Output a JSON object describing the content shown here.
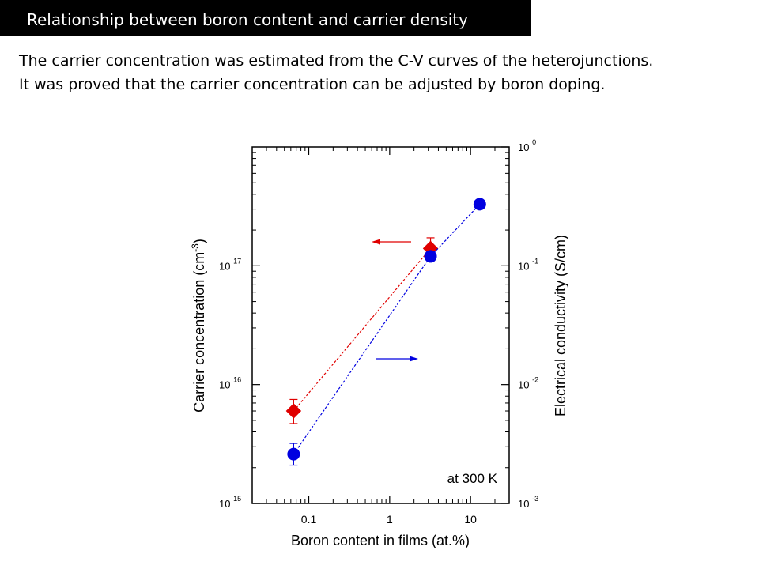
{
  "slide": {
    "title": "Relationship between boron content and carrier density",
    "text_line_1": "The carrier concentration was estimated from the C-V curves of the heterojunctions.",
    "text_line_2": "It was proved that the carrier concentration can be adjusted by boron doping."
  },
  "chart_data": {
    "type": "scatter",
    "x_scale": "log",
    "y_scale": "log",
    "y2_scale": "log",
    "xlim": [
      0.02,
      30
    ],
    "ylim": [
      1000000000000000.0,
      1e+18
    ],
    "y2lim": [
      0.001,
      1
    ],
    "grid": false,
    "xlabel": "Boron content in films (at.%)",
    "ylabel_main": "Carrier concentration (cm",
    "ylabel_sup": "-3",
    "ylabel_end": ")",
    "y2label": "Electrical conductivity (S/cm)",
    "x_ticks": [
      {
        "value": 0.1,
        "label": "0.1"
      },
      {
        "value": 1,
        "label": "1"
      },
      {
        "value": 10,
        "label": "10"
      }
    ],
    "y_ticks": [
      {
        "value": 1000000000000000.0,
        "base": "10",
        "exp": "15"
      },
      {
        "value": 1e+16,
        "base": "10",
        "exp": "16"
      },
      {
        "value": 1e+17,
        "base": "10",
        "exp": "17"
      }
    ],
    "y2_ticks": [
      {
        "value": 0.001,
        "base": "10",
        "exp": "-3"
      },
      {
        "value": 0.01,
        "base": "10",
        "exp": "-2"
      },
      {
        "value": 0.1,
        "base": "10",
        "exp": "-1"
      },
      {
        "value": 1,
        "base": "10",
        "exp": "0"
      }
    ],
    "annotation": "at 300 K",
    "series": [
      {
        "axis": "left",
        "marker": "diamond",
        "color": "#e00000",
        "x": [
          0.065,
          3.2
        ],
        "y": [
          6000000000000000.0,
          1.4e+17
        ],
        "err_low": [
          4700000000000000.0,
          1.1e+17
        ],
        "err_high": [
          7500000000000000.0,
          1.72e+17
        ],
        "arrow_direction": "left"
      },
      {
        "axis": "right",
        "marker": "circle",
        "color": "#0000e0",
        "x": [
          0.065,
          3.2,
          13
        ],
        "y": [
          0.0026,
          0.12,
          0.33
        ],
        "err_low": [
          0.0021,
          null,
          null
        ],
        "err_high": [
          0.0032,
          null,
          null
        ],
        "arrow_direction": "right"
      }
    ]
  }
}
